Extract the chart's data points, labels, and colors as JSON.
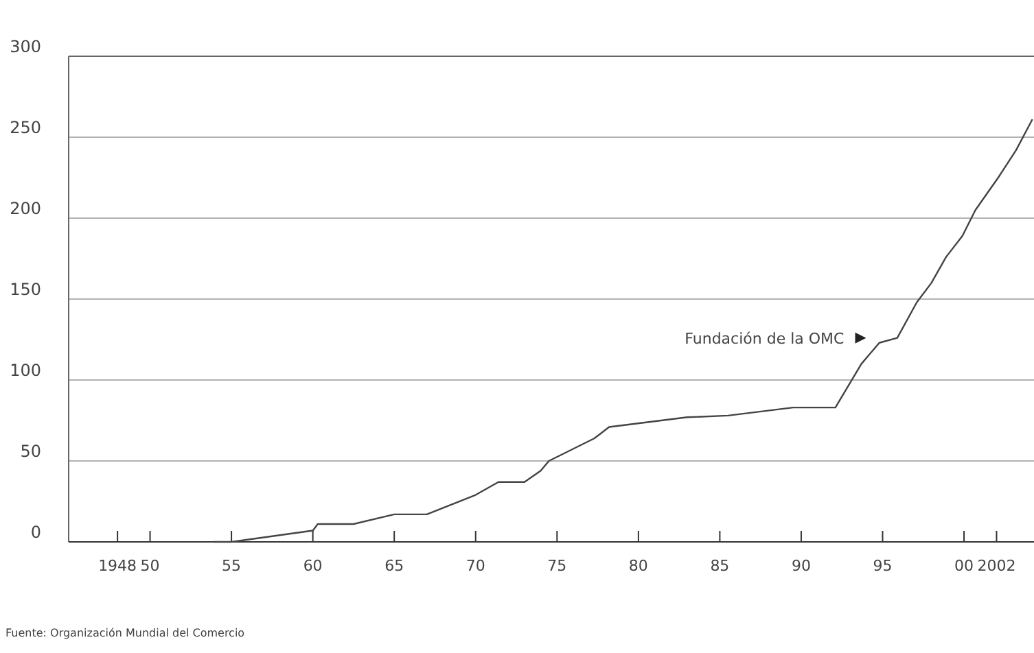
{
  "chart_data": {
    "type": "line",
    "x": [
      1953.9,
      1955,
      1960,
      1960.3,
      1962.5,
      1965,
      1967,
      1970,
      1971.4,
      1973,
      1974,
      1974.5,
      1977.3,
      1978.2,
      1983,
      1985.5,
      1989.5,
      1992.1,
      1993.7,
      1994.8,
      1995.9,
      1997.1,
      1998,
      1998.9,
      1999.9,
      2000.7,
      2002.1,
      2003.2,
      2004.2
    ],
    "series": [
      {
        "color": "#444444",
        "values": [
          0,
          0,
          7,
          11,
          11,
          17,
          17,
          29,
          37,
          37,
          44,
          50,
          64,
          71,
          77,
          78,
          83,
          83,
          110,
          123,
          126,
          148,
          160,
          176,
          189,
          205,
          225,
          242,
          261
        ]
      }
    ],
    "xlim": [
      1945,
      2004.3
    ],
    "xticks": [
      {
        "value": 1948,
        "label": "1948"
      },
      {
        "value": 1950,
        "label": "50"
      },
      {
        "value": 1955,
        "label": "55"
      },
      {
        "value": 1960,
        "label": "60"
      },
      {
        "value": 1965,
        "label": "65"
      },
      {
        "value": 1970,
        "label": "70"
      },
      {
        "value": 1975,
        "label": "75"
      },
      {
        "value": 1980,
        "label": "80"
      },
      {
        "value": 1985,
        "label": "85"
      },
      {
        "value": 1990,
        "label": "90"
      },
      {
        "value": 1995,
        "label": "95"
      },
      {
        "value": 2000,
        "label": "00"
      },
      {
        "value": 2002,
        "label": "2002"
      }
    ],
    "ylim": [
      0,
      300
    ],
    "yticks": [
      0,
      50,
      100,
      150,
      200,
      250,
      300
    ],
    "grid": "y",
    "line_style": "solid",
    "annotations": [
      {
        "text": "Fundación de la OMC",
        "x": 1995,
        "y": 126
      },
      "Fuente: Organización Mundial del Comercio"
    ]
  }
}
